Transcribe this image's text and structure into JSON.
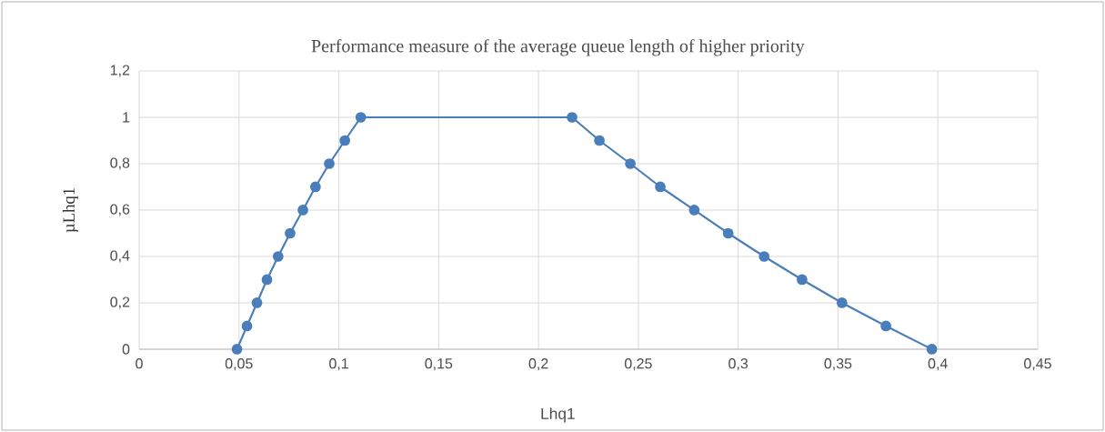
{
  "chart_data": {
    "type": "line",
    "title": "Performance measure of the average queue length of higher priority",
    "xlabel": "Lhq1",
    "ylabel": "µLhq1",
    "x": [
      0.049,
      0.054,
      0.059,
      0.064,
      0.0696,
      0.0756,
      0.082,
      0.0883,
      0.0952,
      0.103,
      0.111,
      0.2168,
      0.2305,
      0.246,
      0.261,
      0.278,
      0.295,
      0.313,
      0.332,
      0.352,
      0.374,
      0.397
    ],
    "series": [
      {
        "color": "#4a7ebb",
        "values": [
          0,
          0.1,
          0.2,
          0.3,
          0.4,
          0.5,
          0.6,
          0.7,
          0.8,
          0.9,
          1,
          1,
          0.9,
          0.8,
          0.7,
          0.6,
          0.5,
          0.4,
          0.3,
          0.2,
          0.1,
          0
        ]
      }
    ],
    "xlim": [
      0,
      0.45
    ],
    "ylim": [
      0,
      1.2
    ],
    "xticks": [
      0,
      {
        "value": 0.05,
        "label": "0,05"
      },
      {
        "value": 0.1,
        "label": "0,1"
      },
      {
        "value": 0.15,
        "label": "0,15"
      },
      {
        "value": 0.2,
        "label": "0,2"
      },
      {
        "value": 0.25,
        "label": "0,25"
      },
      {
        "value": 0.3,
        "label": "0,3"
      },
      {
        "value": 0.35,
        "label": "0,35"
      },
      {
        "value": 0.4,
        "label": "0,4"
      },
      {
        "value": 0.45,
        "label": "0,45"
      }
    ],
    "yticks": [
      0,
      {
        "value": 0.2,
        "label": "0,2"
      },
      {
        "value": 0.4,
        "label": "0,4"
      },
      {
        "value": 0.6,
        "label": "0,6"
      },
      {
        "value": 0.8,
        "label": "0,8"
      },
      1,
      {
        "value": 1.2,
        "label": "1,2"
      }
    ],
    "grid": true,
    "marker": "circle",
    "line_style": "solid"
  }
}
